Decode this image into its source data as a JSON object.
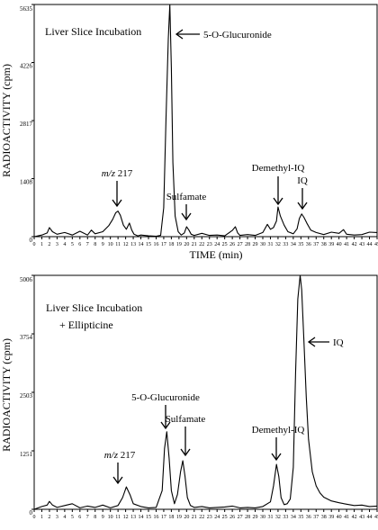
{
  "chart_data": [
    {
      "type": "line",
      "title": "Liver Slice Incubation",
      "subtitle": "",
      "xlabel": "TIME (min)",
      "ylabel": "RADIOACTIVITY (cpm)",
      "xlim": [
        0,
        45
      ],
      "ylim": [
        0,
        5635
      ],
      "x_ticks": [
        "0",
        "1",
        "2",
        "3",
        "4",
        "5",
        "6",
        "7",
        "8",
        "9",
        "10",
        "11",
        "12",
        "13",
        "14",
        "15",
        "16",
        "17",
        "18",
        "19",
        "20",
        "21",
        "22",
        "23",
        "24",
        "25",
        "26",
        "27",
        "28",
        "29",
        "30",
        "31",
        "32",
        "33",
        "34",
        "35",
        "36",
        "37",
        "38",
        "39",
        "40",
        "41",
        "42",
        "43",
        "44",
        "45"
      ],
      "y_ticks": [
        "0",
        "1408",
        "2817",
        "4226",
        "5635"
      ],
      "x_tick_values": [
        0,
        1,
        2,
        3,
        4,
        5,
        6,
        7,
        8,
        9,
        10,
        11,
        12,
        13,
        14,
        15,
        16,
        17,
        18,
        19,
        20,
        21,
        22,
        23,
        24,
        25,
        26,
        27,
        28,
        29,
        30,
        31,
        32,
        33,
        34,
        35,
        36,
        37,
        38,
        39,
        40,
        41,
        42,
        43,
        44,
        45
      ],
      "y_tick_values": [
        0,
        1408,
        2817,
        4226,
        5635
      ],
      "grid": false,
      "series": [
        {
          "x": [
            0,
            1,
            1.7,
            2,
            2.4,
            3,
            4,
            5,
            6,
            7,
            7.5,
            8,
            9,
            9.8,
            10.3,
            10.7,
            11,
            11.3,
            11.7,
            12.1,
            12.5,
            12.8,
            13.1,
            13.6,
            14,
            15,
            16,
            16.6,
            17,
            17.3,
            17.6,
            17.8,
            18.0,
            18.2,
            18.5,
            18.9,
            19.3,
            19.7,
            20.0,
            20.3,
            20.6,
            21,
            22,
            23,
            24,
            25,
            26,
            26.4,
            26.7,
            27,
            28,
            29,
            30,
            30.6,
            31,
            31.4,
            31.8,
            32.0,
            32.3,
            32.8,
            33.3,
            34,
            34.5,
            34.8,
            35.1,
            35.4,
            35.8,
            36.3,
            37,
            38,
            39,
            40,
            40.6,
            41,
            42,
            43,
            44,
            45
          ],
          "y": [
            0,
            40,
            90,
            220,
            120,
            60,
            100,
            40,
            130,
            40,
            160,
            70,
            120,
            270,
            420,
            580,
            620,
            520,
            280,
            180,
            330,
            160,
            60,
            20,
            40,
            20,
            10,
            30,
            700,
            2900,
            4800,
            5635,
            4100,
            1800,
            500,
            120,
            40,
            90,
            240,
            160,
            60,
            30,
            80,
            30,
            40,
            20,
            150,
            240,
            90,
            30,
            50,
            30,
            100,
            300,
            180,
            220,
            380,
            720,
            500,
            280,
            120,
            70,
            190,
            440,
            550,
            470,
            320,
            160,
            100,
            50,
            110,
            80,
            170,
            60,
            40,
            50,
            110,
            100
          ]
        }
      ],
      "annotations": [
        {
          "label_math": "m/z",
          "label_text": "217",
          "x": 11
        },
        {
          "label": "5-O-Glucuronide",
          "x": 17.8
        },
        {
          "label": "Sulfamate",
          "x": 20.1
        },
        {
          "label": "Demethyl-IQ",
          "x": 32.0
        },
        {
          "label": "IQ",
          "x": 35.2
        }
      ]
    },
    {
      "type": "line",
      "title": "Liver Slice Incubation",
      "subtitle": "+ Ellipticine",
      "xlabel": "",
      "ylabel": "RADIOACTIVITY (cpm)",
      "xlim": [
        0,
        45
      ],
      "ylim": [
        0,
        5006
      ],
      "x_ticks": [
        "0",
        "1",
        "2",
        "3",
        "4",
        "5",
        "6",
        "7",
        "8",
        "9",
        "10",
        "11",
        "12",
        "13",
        "14",
        "15",
        "16",
        "17",
        "18",
        "19",
        "20",
        "21",
        "22",
        "23",
        "24",
        "25",
        "26",
        "27",
        "28",
        "29",
        "30",
        "31",
        "32",
        "33",
        "34",
        "35",
        "36",
        "37",
        "38",
        "39",
        "40",
        "41",
        "42",
        "43",
        "44",
        "45"
      ],
      "y_ticks": [
        "0",
        "1251",
        "2503",
        "3754",
        "5006"
      ],
      "x_tick_values": [
        0,
        1,
        2,
        3,
        4,
        5,
        6,
        7,
        8,
        9,
        10,
        11,
        12,
        13,
        14,
        15,
        16,
        17,
        18,
        19,
        20,
        21,
        22,
        23,
        24,
        25,
        26,
        27,
        28,
        29,
        30,
        31,
        32,
        33,
        34,
        35,
        36,
        37,
        38,
        39,
        40,
        41,
        42,
        43,
        44,
        45
      ],
      "y_tick_values": [
        0,
        1251,
        2503,
        3754,
        5006
      ],
      "grid": false,
      "series": [
        {
          "x": [
            0,
            1,
            1.7,
            2,
            2.4,
            3,
            4,
            5,
            6,
            7,
            8,
            9,
            10,
            11,
            11.6,
            12.1,
            12.6,
            13,
            14,
            15,
            16,
            16.8,
            17.1,
            17.4,
            17.7,
            18,
            18.4,
            18.8,
            19.2,
            19.5,
            19.8,
            20.1,
            20.5,
            21,
            22,
            23,
            24,
            25,
            26,
            27,
            28,
            29,
            30,
            31,
            31.4,
            31.8,
            32.1,
            32.4,
            32.8,
            33.2,
            33.6,
            34.0,
            34.3,
            34.6,
            34.9,
            35.1,
            35.4,
            35.7,
            36.0,
            36.5,
            37,
            37.5,
            38,
            39,
            40,
            41,
            42,
            43,
            44,
            45
          ],
          "y": [
            0,
            60,
            90,
            170,
            90,
            40,
            80,
            120,
            30,
            70,
            40,
            90,
            30,
            80,
            250,
            480,
            300,
            120,
            60,
            30,
            40,
            400,
            1300,
            1660,
            1100,
            400,
            120,
            320,
            800,
            1040,
            700,
            250,
            80,
            40,
            60,
            30,
            40,
            50,
            70,
            30,
            40,
            30,
            60,
            160,
            500,
            960,
            700,
            250,
            100,
            120,
            220,
            900,
            2900,
            4500,
            5006,
            4700,
            3600,
            2400,
            1500,
            800,
            500,
            350,
            260,
            180,
            140,
            110,
            80,
            90,
            60,
            70
          ]
        }
      ],
      "annotations": [
        {
          "label_math": "m/z",
          "label_text": "217",
          "x": 11
        },
        {
          "label": "5-O-Glucuronide",
          "x": 17.5
        },
        {
          "label": "Sulfamate",
          "x": 19.6
        },
        {
          "label": "Demethyl-IQ",
          "x": 31.8
        },
        {
          "label": "IQ",
          "x": 35.0
        }
      ]
    }
  ]
}
